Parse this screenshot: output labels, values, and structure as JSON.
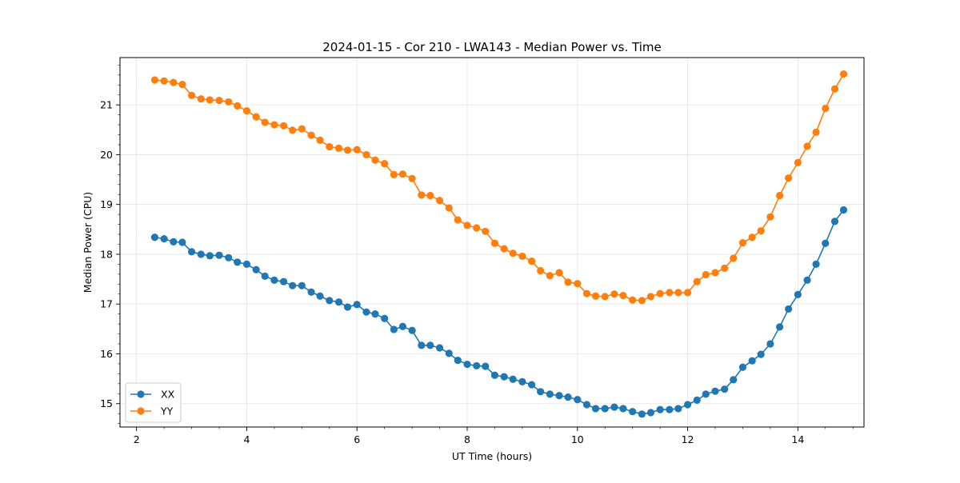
{
  "chart_data": {
    "type": "line",
    "title": "2024-01-15 - Cor 210 - LWA143 - Median Power vs. Time",
    "xlabel": "UT Time (hours)",
    "ylabel": "Median Power (CPU)",
    "xlim": [
      1.7,
      15.2
    ],
    "ylim": [
      14.53,
      21.95
    ],
    "xticks": [
      2,
      4,
      6,
      8,
      10,
      12,
      14
    ],
    "xtick_labels": [
      "2",
      "4",
      "6",
      "8",
      "10",
      "12",
      "14"
    ],
    "yticks": [
      15,
      16,
      17,
      18,
      19,
      20,
      21
    ],
    "ytick_labels": [
      "15",
      "16",
      "17",
      "18",
      "19",
      "20",
      "21"
    ],
    "grid": true,
    "legend_position": "lower-left",
    "x": [
      2.33,
      2.5,
      2.67,
      2.83,
      3.0,
      3.17,
      3.33,
      3.5,
      3.67,
      3.83,
      4.0,
      4.17,
      4.33,
      4.5,
      4.67,
      4.83,
      5.0,
      5.17,
      5.33,
      5.5,
      5.67,
      5.83,
      6.0,
      6.17,
      6.33,
      6.5,
      6.67,
      6.83,
      7.0,
      7.17,
      7.33,
      7.5,
      7.67,
      7.83,
      8.0,
      8.17,
      8.33,
      8.5,
      8.67,
      8.83,
      9.0,
      9.17,
      9.33,
      9.5,
      9.67,
      9.83,
      10.0,
      10.17,
      10.33,
      10.5,
      10.67,
      10.83,
      11.0,
      11.17,
      11.33,
      11.5,
      11.67,
      11.83,
      12.0,
      12.17,
      12.33,
      12.5,
      12.67,
      12.83,
      13.0,
      13.17,
      13.33,
      13.5,
      13.67,
      13.83,
      14.0,
      14.17,
      14.33,
      14.5,
      14.67,
      14.83
    ],
    "series": [
      {
        "name": "XX",
        "color": "#1f77b4",
        "values": [
          18.34,
          18.31,
          18.25,
          18.24,
          18.05,
          18.0,
          17.97,
          17.98,
          17.93,
          17.84,
          17.8,
          17.69,
          17.56,
          17.48,
          17.45,
          17.37,
          17.37,
          17.24,
          17.16,
          17.07,
          17.04,
          16.94,
          16.99,
          16.84,
          16.8,
          16.71,
          16.49,
          16.55,
          16.47,
          16.17,
          16.17,
          16.12,
          16.01,
          15.87,
          15.79,
          15.76,
          15.75,
          15.57,
          15.54,
          15.49,
          15.44,
          15.38,
          15.24,
          15.19,
          15.16,
          15.13,
          15.08,
          14.98,
          14.9,
          14.9,
          14.93,
          14.9,
          14.84,
          14.79,
          14.82,
          14.88,
          14.88,
          14.9,
          14.98,
          15.07,
          15.19,
          15.25,
          15.29,
          15.48,
          15.73,
          15.86,
          15.99,
          16.2,
          16.54,
          16.9,
          17.19,
          17.48,
          17.8,
          18.22,
          18.66,
          18.89
        ]
      },
      {
        "name": "YY",
        "color": "#ff7f0e",
        "values": [
          21.5,
          21.48,
          21.45,
          21.41,
          21.19,
          21.12,
          21.1,
          21.09,
          21.06,
          20.98,
          20.88,
          20.76,
          20.65,
          20.6,
          20.58,
          20.49,
          20.52,
          20.39,
          20.29,
          20.16,
          20.13,
          20.09,
          20.1,
          20.0,
          19.89,
          19.82,
          19.6,
          19.61,
          19.52,
          19.19,
          19.18,
          19.08,
          18.93,
          18.69,
          18.58,
          18.53,
          18.46,
          18.22,
          18.11,
          18.02,
          17.96,
          17.86,
          17.67,
          17.57,
          17.63,
          17.44,
          17.41,
          17.21,
          17.16,
          17.15,
          17.2,
          17.17,
          17.08,
          17.07,
          17.15,
          17.21,
          17.23,
          17.23,
          17.23,
          17.45,
          17.59,
          17.63,
          17.72,
          17.92,
          18.23,
          18.34,
          18.47,
          18.75,
          19.18,
          19.53,
          19.84,
          20.17,
          20.45,
          20.93,
          21.32,
          21.62
        ]
      }
    ]
  }
}
